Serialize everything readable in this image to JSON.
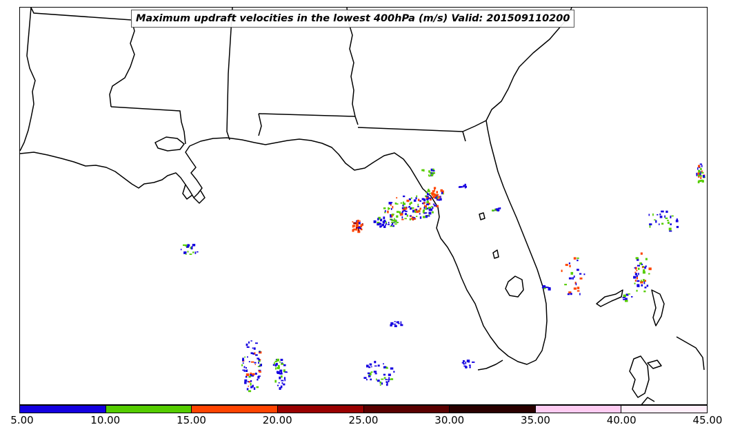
{
  "title": "Maximum updraft velocities in the lowest 400hPa (m/s) Valid: 201509110200",
  "colorbar": {
    "colors": [
      "#1400e0",
      "#55cc00",
      "#ff4400",
      "#990000",
      "#5a0000",
      "#2a0000",
      "#ffccf2",
      "#ffeefa"
    ],
    "tick_labels": [
      "5.00",
      "10.00",
      "15.00",
      "20.00",
      "25.00",
      "30.00",
      "35.00",
      "40.00",
      "45.00"
    ]
  },
  "map": {
    "region": "Gulf of Mexico / Florida",
    "features": [
      "coastline",
      "state-borders",
      "updraft-cells"
    ]
  }
}
